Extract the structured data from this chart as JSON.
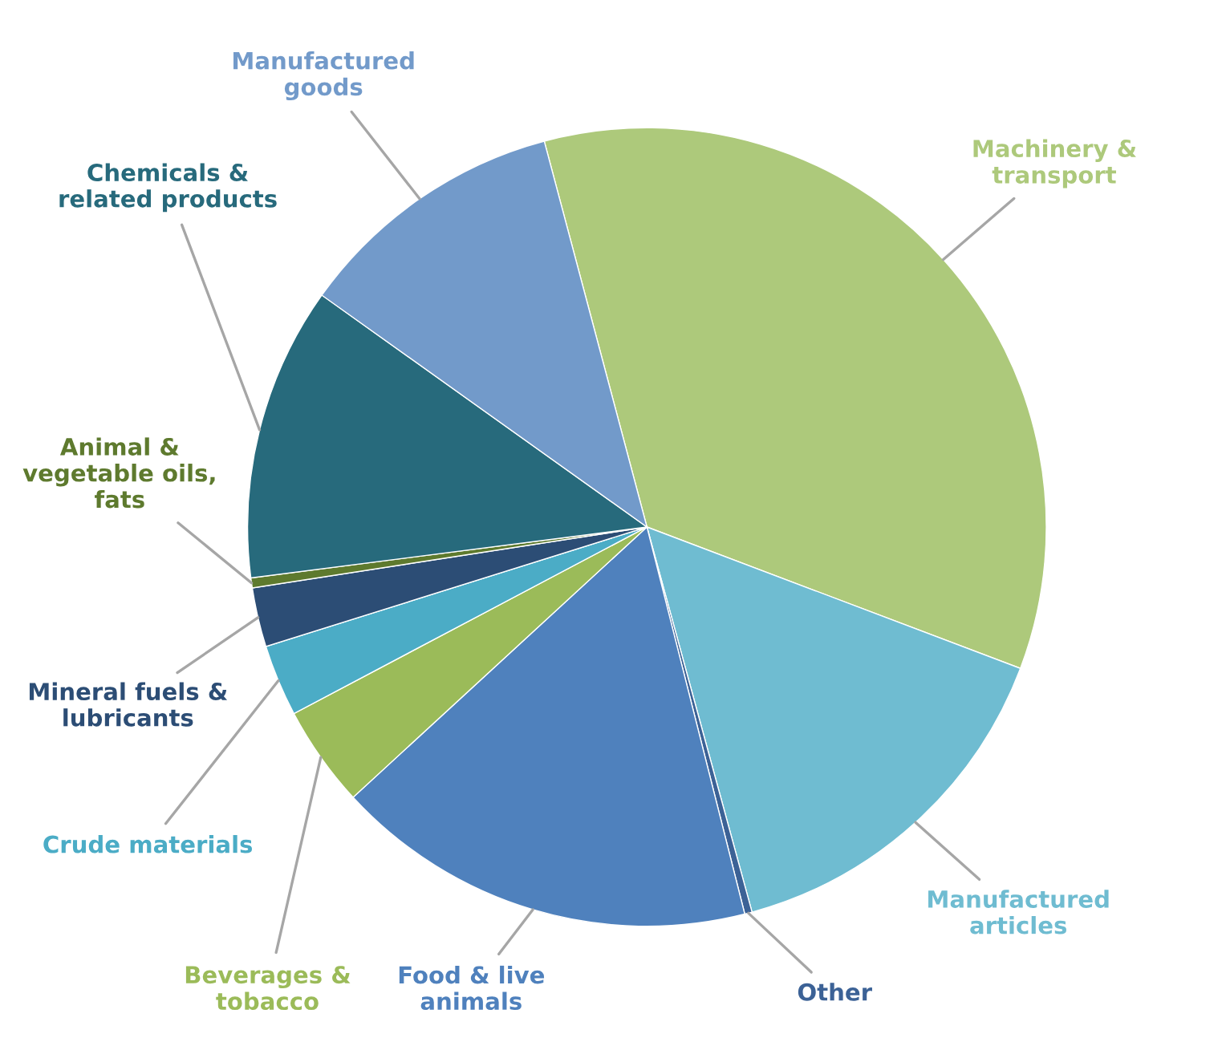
{
  "chart_data": {
    "type": "pie",
    "categories": [
      "Machinery &\ntransport",
      "Manufactured\narticles",
      "Other",
      "Food & live\nanimals",
      "Beverages &\ntobacco",
      "Crude materials",
      "Mineral fuels &\nlubricants",
      "Animal &\nvegetable oils,\nfats",
      "Chemicals &\nrelated products",
      "Manufactured\ngoods"
    ],
    "values": [
      34.9,
      15.0,
      0.3,
      17.1,
      4.1,
      2.9,
      2.4,
      0.4,
      11.9,
      11.0
    ],
    "colors": [
      "#adc97b",
      "#6fbcd1",
      "#3c6296",
      "#4f81bd",
      "#9bbb59",
      "#4bacc6",
      "#2c4d75",
      "#5e7a2e",
      "#276a7c",
      "#729aca"
    ],
    "legend": false
  }
}
